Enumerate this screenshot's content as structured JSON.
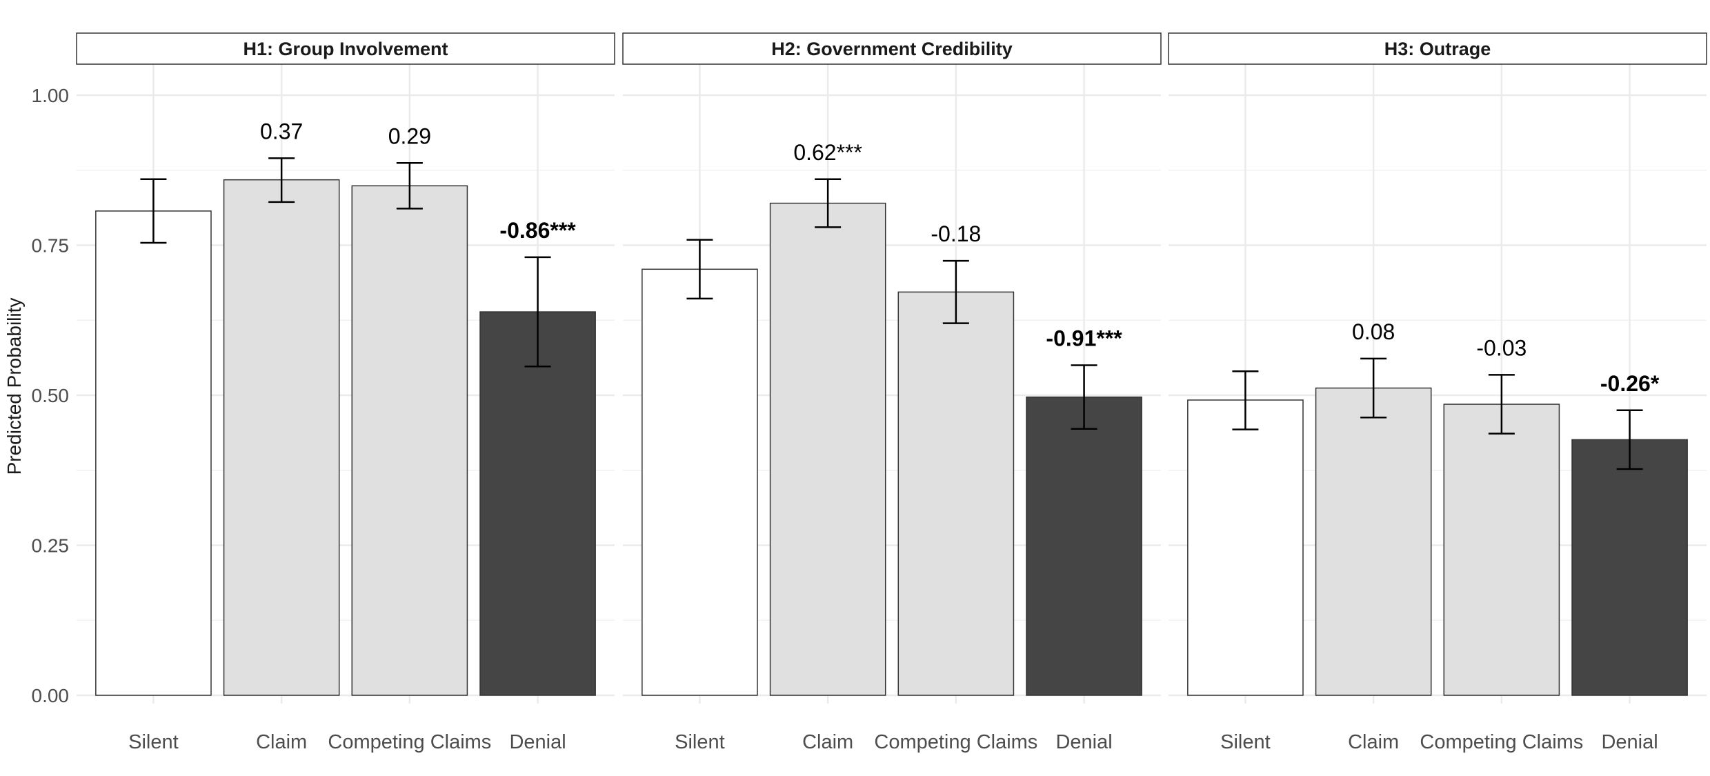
{
  "chart_data": {
    "type": "bar",
    "ylabel": "Predicted Probability",
    "ylim": [
      0,
      1
    ],
    "yticks": [
      "0.00",
      "0.25",
      "0.50",
      "0.75",
      "1.00"
    ],
    "categories": [
      "Silent",
      "Claim",
      "Competing Claims",
      "Denial"
    ],
    "fill_colors": [
      "#ffffff",
      "#e0e0e0",
      "#e0e0e0",
      "#454545"
    ],
    "grid": true,
    "panels": [
      {
        "title": "H1: Group Involvement",
        "values": [
          0.807,
          0.859,
          0.849,
          0.639
        ],
        "ci_low": [
          0.754,
          0.822,
          0.811,
          0.548
        ],
        "ci_high": [
          0.86,
          0.895,
          0.887,
          0.73
        ],
        "annotations": [
          "",
          "0.37",
          "0.29",
          "-0.86***"
        ],
        "bold": [
          false,
          false,
          false,
          true
        ]
      },
      {
        "title": "H2: Government Credibility",
        "values": [
          0.71,
          0.82,
          0.672,
          0.497
        ],
        "ci_low": [
          0.661,
          0.78,
          0.62,
          0.444
        ],
        "ci_high": [
          0.759,
          0.86,
          0.724,
          0.55
        ],
        "annotations": [
          "",
          "0.62***",
          "-0.18",
          "-0.91***"
        ],
        "bold": [
          false,
          false,
          false,
          true
        ]
      },
      {
        "title": "H3: Outrage",
        "values": [
          0.492,
          0.512,
          0.485,
          0.426
        ],
        "ci_low": [
          0.443,
          0.463,
          0.436,
          0.377
        ],
        "ci_high": [
          0.54,
          0.561,
          0.534,
          0.475
        ],
        "annotations": [
          "",
          "0.08",
          "-0.03",
          "-0.26*"
        ],
        "bold": [
          false,
          false,
          false,
          true
        ]
      }
    ]
  }
}
